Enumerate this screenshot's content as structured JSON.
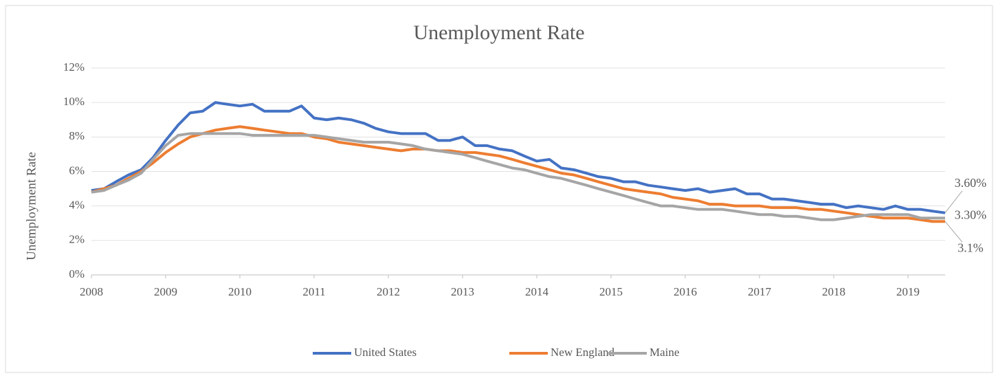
{
  "chart_data": {
    "type": "line",
    "title": "Unemployment Rate",
    "y_label": "Unemployment Rate",
    "x": [
      2008,
      2008.17,
      2008.33,
      2008.5,
      2008.67,
      2008.83,
      2009,
      2009.17,
      2009.33,
      2009.5,
      2009.67,
      2009.83,
      2010,
      2010.17,
      2010.33,
      2010.5,
      2010.67,
      2010.83,
      2011,
      2011.17,
      2011.33,
      2011.5,
      2011.67,
      2011.83,
      2012,
      2012.17,
      2012.33,
      2012.5,
      2012.67,
      2012.83,
      2013,
      2013.17,
      2013.33,
      2013.5,
      2013.67,
      2013.83,
      2014,
      2014.17,
      2014.33,
      2014.5,
      2014.67,
      2014.83,
      2015,
      2015.17,
      2015.33,
      2015.5,
      2015.67,
      2015.83,
      2016,
      2016.17,
      2016.33,
      2016.5,
      2016.67,
      2016.83,
      2017,
      2017.17,
      2017.33,
      2017.5,
      2017.67,
      2017.83,
      2018,
      2018.17,
      2018.33,
      2018.5,
      2018.67,
      2018.83,
      2019,
      2019.17,
      2019.33,
      2019.5
    ],
    "series": [
      {
        "name": "United States",
        "color": "#4472c4",
        "values": [
          4.9,
          5.0,
          5.4,
          5.8,
          6.1,
          6.8,
          7.8,
          8.7,
          9.4,
          9.5,
          10.0,
          9.9,
          9.8,
          9.9,
          9.5,
          9.5,
          9.5,
          9.8,
          9.1,
          9.0,
          9.1,
          9.0,
          8.8,
          8.5,
          8.3,
          8.2,
          8.2,
          8.2,
          7.8,
          7.8,
          8.0,
          7.5,
          7.5,
          7.3,
          7.2,
          6.9,
          6.6,
          6.7,
          6.2,
          6.1,
          5.9,
          5.7,
          5.6,
          5.4,
          5.4,
          5.2,
          5.1,
          5.0,
          4.9,
          5.0,
          4.8,
          4.9,
          5.0,
          4.7,
          4.7,
          4.4,
          4.4,
          4.3,
          4.2,
          4.1,
          4.1,
          3.9,
          4.0,
          3.9,
          3.8,
          4.0,
          3.8,
          3.8,
          3.7,
          3.6
        ],
        "value_labels": [
          null,
          null,
          null,
          null,
          null,
          null,
          null,
          null,
          null,
          null,
          null,
          null,
          null,
          null,
          null,
          null,
          null,
          null,
          null,
          null,
          null,
          null,
          null,
          null,
          null,
          null,
          null,
          null,
          null,
          null,
          null,
          null,
          null,
          null,
          null,
          null,
          null,
          null,
          null,
          null,
          null,
          null,
          null,
          null,
          null,
          null,
          null,
          null,
          null,
          null,
          null,
          null,
          null,
          null,
          null,
          null,
          null,
          null,
          null,
          null,
          null,
          null,
          null,
          null,
          null,
          null,
          null,
          null,
          null,
          "3.60%"
        ]
      },
      {
        "name": "New England",
        "color": "#ed7d31",
        "values": [
          4.8,
          5.0,
          5.2,
          5.6,
          6.0,
          6.5,
          7.1,
          7.6,
          8.0,
          8.2,
          8.4,
          8.5,
          8.6,
          8.5,
          8.4,
          8.3,
          8.2,
          8.2,
          8.0,
          7.9,
          7.7,
          7.6,
          7.5,
          7.4,
          7.3,
          7.2,
          7.3,
          7.3,
          7.2,
          7.2,
          7.1,
          7.1,
          7.0,
          6.9,
          6.7,
          6.5,
          6.3,
          6.1,
          5.9,
          5.8,
          5.6,
          5.4,
          5.2,
          5.0,
          4.9,
          4.8,
          4.7,
          4.5,
          4.4,
          4.3,
          4.1,
          4.1,
          4.0,
          4.0,
          4.0,
          3.9,
          3.9,
          3.9,
          3.8,
          3.8,
          3.7,
          3.6,
          3.5,
          3.4,
          3.3,
          3.3,
          3.3,
          3.2,
          3.1,
          3.1
        ],
        "value_labels": [
          null,
          null,
          null,
          null,
          null,
          null,
          null,
          null,
          null,
          null,
          null,
          null,
          null,
          null,
          null,
          null,
          null,
          null,
          null,
          null,
          null,
          null,
          null,
          null,
          null,
          null,
          null,
          null,
          null,
          null,
          null,
          null,
          null,
          null,
          null,
          null,
          null,
          null,
          null,
          null,
          null,
          null,
          null,
          null,
          null,
          null,
          null,
          null,
          null,
          null,
          null,
          null,
          null,
          null,
          null,
          null,
          null,
          null,
          null,
          null,
          null,
          null,
          null,
          null,
          null,
          null,
          null,
          null,
          null,
          "3.1%"
        ]
      },
      {
        "name": "Maine",
        "color": "#a5a5a5",
        "values": [
          4.8,
          4.9,
          5.2,
          5.5,
          5.9,
          6.7,
          7.5,
          8.1,
          8.2,
          8.2,
          8.2,
          8.2,
          8.2,
          8.1,
          8.1,
          8.1,
          8.1,
          8.1,
          8.1,
          8.0,
          7.9,
          7.8,
          7.7,
          7.7,
          7.7,
          7.6,
          7.5,
          7.3,
          7.2,
          7.1,
          7.0,
          6.8,
          6.6,
          6.4,
          6.2,
          6.1,
          5.9,
          5.7,
          5.6,
          5.4,
          5.2,
          5.0,
          4.8,
          4.6,
          4.4,
          4.2,
          4.0,
          4.0,
          3.9,
          3.8,
          3.8,
          3.8,
          3.7,
          3.6,
          3.5,
          3.5,
          3.4,
          3.4,
          3.3,
          3.2,
          3.2,
          3.3,
          3.4,
          3.5,
          3.5,
          3.5,
          3.5,
          3.3,
          3.3,
          3.3
        ],
        "value_labels": [
          null,
          null,
          null,
          null,
          null,
          null,
          null,
          null,
          null,
          null,
          null,
          null,
          null,
          null,
          null,
          null,
          null,
          null,
          null,
          null,
          null,
          null,
          null,
          null,
          null,
          null,
          null,
          null,
          null,
          null,
          null,
          null,
          null,
          null,
          null,
          null,
          null,
          null,
          null,
          null,
          null,
          null,
          null,
          null,
          null,
          null,
          null,
          null,
          null,
          null,
          null,
          null,
          null,
          null,
          null,
          null,
          null,
          null,
          null,
          null,
          null,
          null,
          null,
          null,
          null,
          null,
          null,
          null,
          null,
          "3.30%"
        ]
      }
    ],
    "xlim": [
      2008,
      2019.5
    ],
    "xticks": [
      2008,
      2009,
      2010,
      2011,
      2012,
      2013,
      2014,
      2015,
      2016,
      2017,
      2018,
      2019
    ],
    "ylim": [
      0,
      12
    ],
    "yticks": [
      {
        "value": 0,
        "label": "0%"
      },
      {
        "value": 2,
        "label": "2%"
      },
      {
        "value": 4,
        "label": "4%"
      },
      {
        "value": 6,
        "label": "6%"
      },
      {
        "value": 8,
        "label": "8%"
      },
      {
        "value": 10,
        "label": "10%"
      },
      {
        "value": 12,
        "label": "12%"
      }
    ],
    "grid": true,
    "legend": "bottom"
  }
}
